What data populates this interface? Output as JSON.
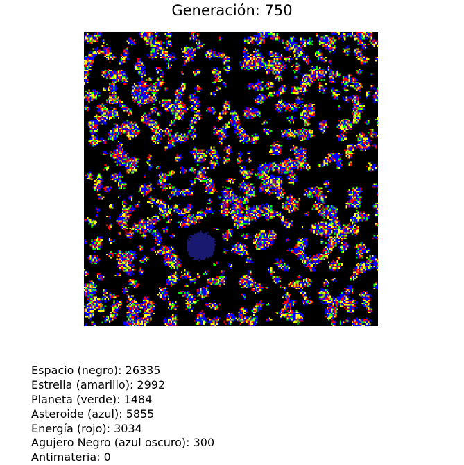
{
  "title": "Generación: 750",
  "grid": {
    "rows": 200,
    "cols": 200,
    "colors": {
      "espacio": "#000000",
      "estrella": "#ffff00",
      "planeta": "#00ff00",
      "asteroide": "#0000ff",
      "energia": "#ff0000",
      "agujero_negro": "#191970",
      "antimateria": "#ffffff"
    }
  },
  "stats": [
    {
      "label": "Espacio (negro)",
      "value": 26335,
      "text": "Espacio (negro): 26335"
    },
    {
      "label": "Estrella (amarillo)",
      "value": 2992,
      "text": "Estrella (amarillo): 2992"
    },
    {
      "label": "Planeta (verde)",
      "value": 1484,
      "text": "Planeta (verde): 1484"
    },
    {
      "label": "Asteroide (azul)",
      "value": 5855,
      "text": "Asteroide (azul): 5855"
    },
    {
      "label": "Energía (rojo)",
      "value": 3034,
      "text": "Energía (rojo): 3034"
    },
    {
      "label": "Agujero Negro (azul oscuro)",
      "value": 300,
      "text": "Agujero Negro (azul oscuro): 300"
    },
    {
      "label": "Antimateria",
      "value": 0,
      "text": "Antimateria: 0"
    }
  ]
}
